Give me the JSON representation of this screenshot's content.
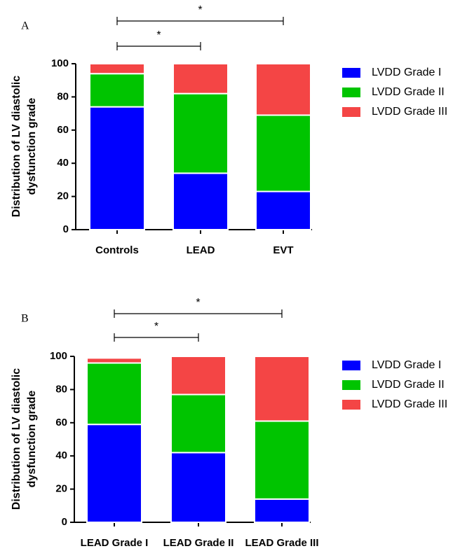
{
  "chart_data": [
    {
      "type": "stacked_bar",
      "panel_label": "A",
      "ylabel": [
        "Distribution of LV diastolic",
        "dysfunction grade"
      ],
      "categories": [
        "Controls",
        "LEAD",
        "EVT"
      ],
      "series": [
        {
          "name": "LVDD Grade I",
          "color": "#0000ff",
          "values": [
            74,
            34,
            23
          ]
        },
        {
          "name": "LVDD Grade II",
          "color": "#00c400",
          "values": [
            20,
            48,
            46
          ]
        },
        {
          "name": "LVDD Grade III",
          "color": "#f44545",
          "values": [
            6,
            18,
            31
          ]
        }
      ],
      "ylim": [
        0,
        100
      ],
      "yticks": [
        0,
        20,
        40,
        60,
        80,
        100
      ],
      "annotations": [
        "*",
        "*"
      ]
    },
    {
      "type": "stacked_bar",
      "panel_label": "B",
      "ylabel": [
        "Distribution of LV diastolic",
        "dysfunction grade"
      ],
      "categories": [
        "LEAD Grade I",
        "LEAD Grade II",
        "LEAD Grade III"
      ],
      "series": [
        {
          "name": "LVDD Grade I",
          "color": "#0000ff",
          "values": [
            59,
            42,
            14
          ]
        },
        {
          "name": "LVDD Grade II",
          "color": "#00c400",
          "values": [
            37,
            35,
            47
          ]
        },
        {
          "name": "LVDD Grade III",
          "color": "#f44545",
          "values": [
            3,
            23,
            39
          ]
        }
      ],
      "ylim": [
        0,
        100
      ],
      "yticks": [
        0,
        20,
        40,
        60,
        80,
        100
      ],
      "annotations": [
        "*",
        "*"
      ]
    }
  ]
}
